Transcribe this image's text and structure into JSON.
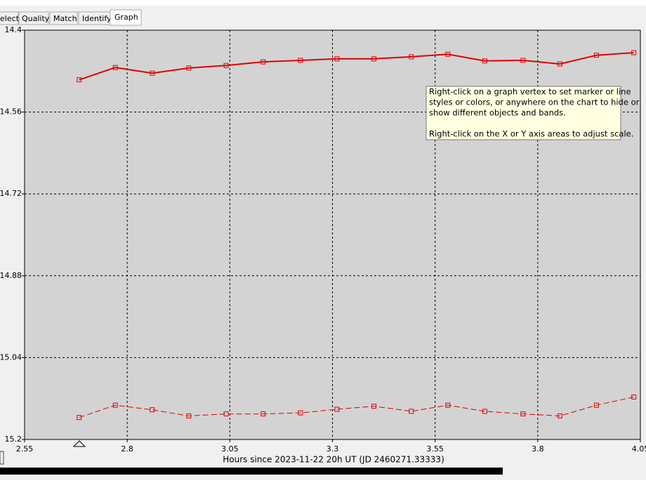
{
  "tabs": [
    "elect",
    "Quality",
    "Match",
    "Identify",
    "Graph"
  ],
  "tooltip": [
    "Right-click on a graph vertex to set marker or line",
    "styles or colors, or anywhere on the chart to hide or",
    "show different objects and bands.",
    "Right-click on the X or Y axis areas to adjust scale."
  ],
  "chart_data": {
    "type": "line",
    "xlabel": "Hours since 2023-11-22 20h UT (JD 2460271.33333)",
    "x": [
      2.683,
      2.771,
      2.861,
      2.95,
      3.041,
      3.131,
      3.222,
      3.311,
      3.401,
      3.492,
      3.581,
      3.671,
      3.764,
      3.854,
      3.943,
      4.034
    ],
    "series": [
      {
        "color": "#e00000",
        "line_style": "solid",
        "values": [
          14.497,
          14.473,
          14.484,
          14.474,
          14.469,
          14.462,
          14.459,
          14.456,
          14.456,
          14.452,
          14.447,
          14.46,
          14.459,
          14.466,
          14.449,
          14.444
        ]
      },
      {
        "color": "#e00000",
        "line_style": "dashed",
        "values": [
          15.157,
          15.133,
          15.142,
          15.154,
          15.15,
          15.15,
          15.148,
          15.141,
          15.135,
          15.145,
          15.133,
          15.145,
          15.15,
          15.154,
          15.133,
          15.117
        ]
      }
    ],
    "xlim": [
      2.55,
      4.05
    ],
    "xticks": [
      2.55,
      2.8,
      3.05,
      3.3,
      3.55,
      3.8,
      4.05
    ],
    "ylim": [
      15.2,
      14.4
    ],
    "yticks": [
      14.4,
      14.56,
      14.72,
      14.88,
      15.04,
      15.2
    ],
    "grid": true
  }
}
